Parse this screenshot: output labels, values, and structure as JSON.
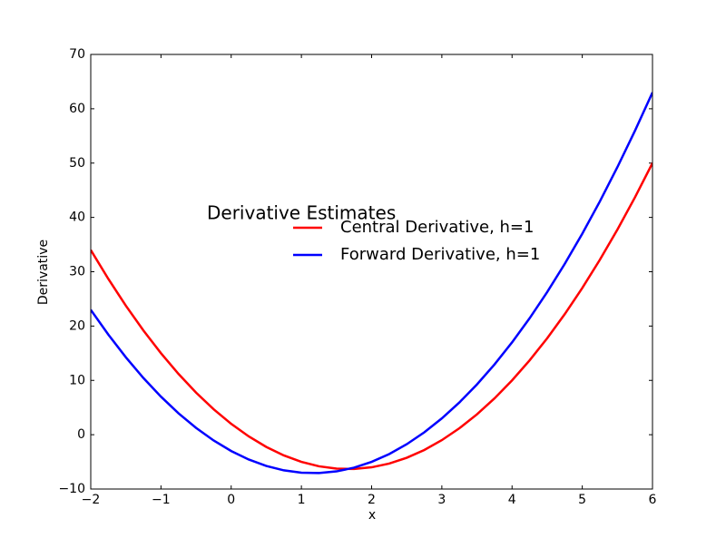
{
  "chart_data": {
    "type": "line",
    "xlabel": "x",
    "ylabel": "Derivative",
    "legend_title": "Derivative Estimates",
    "legend": "center",
    "x": [
      -2,
      -1.75,
      -1.5,
      -1.25,
      -1,
      -0.75,
      -0.5,
      -0.25,
      0,
      0.25,
      0.5,
      0.75,
      1,
      1.25,
      1.5,
      1.75,
      2,
      2.25,
      2.5,
      2.75,
      3,
      3.25,
      3.5,
      3.75,
      4,
      4.25,
      4.5,
      4.75,
      5,
      5.25,
      5.5,
      5.75,
      6
    ],
    "series": [
      {
        "name": "Central Derivative, h=1",
        "color": "#ff0000",
        "values": [
          34,
          28.6875,
          23.75,
          19.1875,
          15,
          11.1875,
          7.75,
          4.6875,
          2,
          -0.3125,
          -2.25,
          -3.8125,
          -5,
          -5.8125,
          -6.25,
          -6.3125,
          -6,
          -5.3125,
          -4.25,
          -2.8125,
          -1,
          1.1875,
          3.75,
          6.6875,
          10,
          13.6875,
          17.75,
          22.1875,
          27,
          32.1875,
          37.75,
          43.6875,
          50
        ]
      },
      {
        "name": "Forward Derivative, h=1",
        "color": "#0000ff",
        "values": [
          23,
          18.4375,
          14.25,
          10.4375,
          7,
          3.9375,
          1.25,
          -1.0625,
          -3,
          -4.5625,
          -5.75,
          -6.5625,
          -7,
          -7.0625,
          -6.75,
          -6.0625,
          -5,
          -3.5625,
          -1.75,
          0.4375,
          3,
          5.9375,
          9.25,
          12.9375,
          17,
          21.4375,
          26.25,
          31.4375,
          37,
          42.9375,
          49.25,
          55.9375,
          63
        ]
      }
    ],
    "xlim": [
      -2,
      6
    ],
    "xticks": [
      {
        "value": -2,
        "label": "−2"
      },
      {
        "value": -1,
        "label": "−1"
      },
      0,
      1,
      2,
      3,
      4,
      5,
      6
    ],
    "ylim": [
      -10,
      70
    ],
    "yticks": [
      {
        "value": -10,
        "label": "−10"
      },
      0,
      10,
      20,
      30,
      40,
      50,
      60,
      70
    ],
    "grid": false
  }
}
